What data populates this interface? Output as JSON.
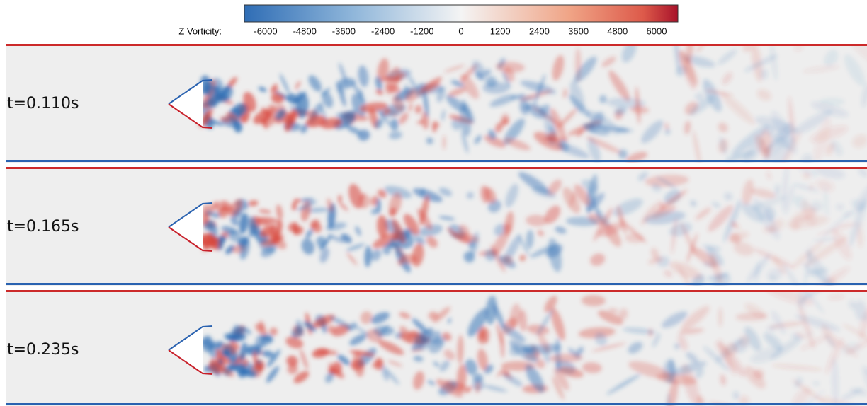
{
  "colorbar": {
    "label": "Z Vorticity:",
    "ticks": [
      -6000,
      -4800,
      -3600,
      -2400,
      -1200,
      0,
      1200,
      2400,
      3600,
      4800,
      6000
    ]
  },
  "panels": [
    {
      "label": "t=0.110s"
    },
    {
      "label": "t=0.165s"
    },
    {
      "label": "t=0.235s"
    }
  ]
}
